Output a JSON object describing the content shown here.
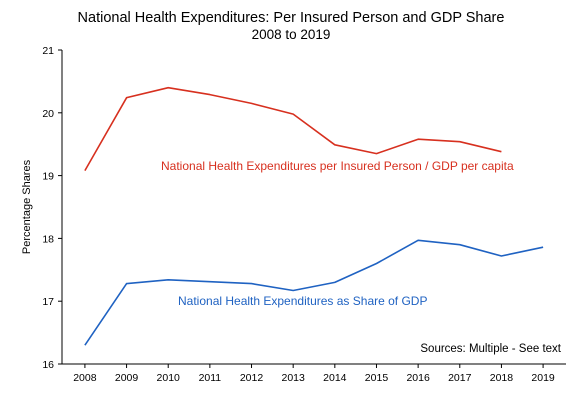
{
  "chart_data": {
    "type": "line",
    "title": "National Health Expenditures:  Per Insured Person and GDP Share",
    "subtitle": "2008 to 2019",
    "xlabel": "",
    "ylabel": "Percentage Shares",
    "ylim": [
      16,
      21
    ],
    "yticks": [
      16,
      17,
      18,
      19,
      20,
      21
    ],
    "x": [
      2008,
      2009,
      2010,
      2011,
      2012,
      2013,
      2014,
      2015,
      2016,
      2017,
      2018,
      2019
    ],
    "grid": false,
    "series": [
      {
        "name": "National Health Expenditures per Insured Person / GDP per capita",
        "color": "#d7301f",
        "values": [
          19.08,
          20.24,
          20.4,
          20.29,
          20.15,
          19.98,
          19.49,
          19.35,
          19.58,
          19.54,
          19.38,
          null
        ]
      },
      {
        "name": "National Health Expenditures as Share of GDP",
        "color": "#1f62c2",
        "values": [
          16.3,
          17.28,
          17.34,
          17.31,
          17.28,
          17.17,
          17.3,
          17.6,
          17.97,
          17.9,
          17.72,
          17.86
        ]
      }
    ],
    "annotations": {
      "sources": "Sources:  Multiple - See text"
    }
  }
}
